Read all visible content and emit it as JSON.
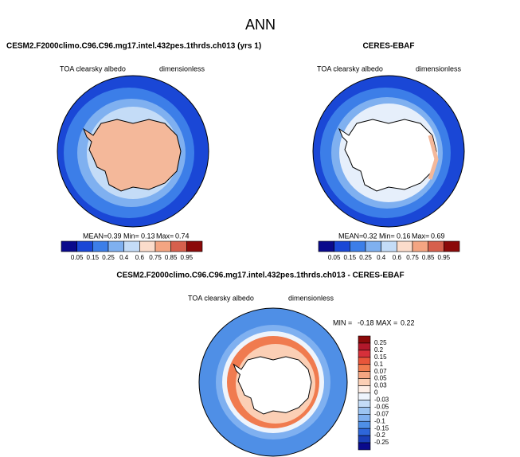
{
  "title": "ANN",
  "panels": [
    {
      "title": "CESM2.F2000climo.C96.C96.mg17.intel.432pes.1thrds.ch013 (yrs 1)",
      "variable": "TOA clearsky albedo",
      "units": "dimensionless",
      "stats": {
        "mean_label": "MEAN=",
        "mean": 0.39,
        "min_label": "Min=",
        "min": 0.13,
        "max_label": "Max=",
        "max": 0.74
      }
    },
    {
      "title": "CERES-EBAF",
      "variable": "TOA clearsky albedo",
      "units": "dimensionless",
      "stats": {
        "mean_label": "MEAN=",
        "mean": 0.32,
        "min_label": "Min=",
        "min": 0.16,
        "max_label": "Max=",
        "max": 0.69
      }
    }
  ],
  "colorbar": {
    "labels": [
      0.05,
      0.15,
      0.25,
      0.4,
      0.6,
      0.75,
      0.85,
      0.95
    ],
    "colors": [
      "#0a0a8c",
      "#1a47d6",
      "#3c7ee8",
      "#7fb0f0",
      "#c4dcf7",
      "#fbdccb",
      "#f4a582",
      "#d6604d",
      "#8b0a0a"
    ]
  },
  "difference": {
    "title": "CESM2.F2000climo.C96.C96.mg17.intel.432pes.1thrds.ch013 - CERES-EBAF",
    "variable": "TOA clearsky albedo",
    "units": "dimensionless",
    "stats": {
      "min_label": "MIN =",
      "min": -0.18,
      "max_label": "MAX =",
      "max": 0.22
    },
    "colorbar": {
      "labels": [
        0.25,
        0.2,
        0.15,
        0.1,
        0.07,
        0.05,
        0.03,
        0,
        -0.03,
        -0.05,
        -0.07,
        -0.1,
        -0.15,
        -0.2,
        -0.25
      ],
      "colors": [
        "#8b0a0a",
        "#b2182b",
        "#d6303a",
        "#e8553a",
        "#f07b4f",
        "#f4a582",
        "#fbcfb5",
        "#fdeee6",
        "#eef4fc",
        "#c4dcf7",
        "#9cc4f2",
        "#7fb0f0",
        "#4f8fe6",
        "#2e66d9",
        "#1a3fb8",
        "#0a0a8c"
      ]
    }
  }
}
